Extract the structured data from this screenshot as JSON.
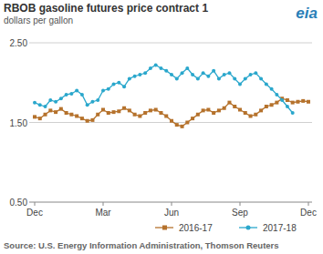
{
  "chart_data": {
    "type": "line",
    "title": "RBOB gasoline futures price contract 1",
    "subtitle": "dollars per gallon",
    "logo": "eia",
    "source": "Source: U.S. Energy Information Administration, Thomson Reuters",
    "categories": [
      "Dec",
      null,
      null,
      null,
      null,
      null,
      null,
      null,
      null,
      null,
      null,
      null,
      null,
      "Mar",
      null,
      null,
      null,
      null,
      null,
      null,
      null,
      null,
      null,
      null,
      null,
      null,
      "Jun",
      null,
      null,
      null,
      null,
      null,
      null,
      null,
      null,
      null,
      null,
      null,
      null,
      "Sep",
      null,
      null,
      null,
      null,
      null,
      null,
      null,
      null,
      null,
      null,
      null,
      null,
      "Dec"
    ],
    "series": [
      {
        "name": "2016-17",
        "color": "#b5722c",
        "marker": "square",
        "values": [
          1.57,
          1.55,
          1.6,
          1.65,
          1.63,
          1.67,
          1.62,
          1.6,
          1.58,
          1.55,
          1.52,
          1.53,
          1.6,
          1.66,
          1.62,
          1.63,
          1.64,
          1.68,
          1.65,
          1.6,
          1.58,
          1.62,
          1.65,
          1.66,
          1.62,
          1.58,
          1.52,
          1.47,
          1.45,
          1.5,
          1.55,
          1.6,
          1.65,
          1.66,
          1.62,
          1.65,
          1.68,
          1.75,
          1.7,
          1.66,
          1.62,
          1.58,
          1.6,
          1.65,
          1.7,
          1.72,
          1.75,
          1.8,
          1.78,
          1.75,
          1.76,
          1.77,
          1.76
        ]
      },
      {
        "name": "2017-18",
        "color": "#2aa7cc",
        "marker": "circle",
        "values": [
          1.75,
          1.72,
          1.7,
          1.78,
          1.76,
          1.8,
          1.85,
          1.86,
          1.9,
          1.85,
          1.72,
          1.76,
          1.78,
          1.9,
          1.92,
          1.98,
          2.0,
          1.95,
          2.05,
          2.08,
          2.1,
          2.12,
          2.18,
          2.22,
          2.18,
          2.15,
          2.1,
          2.05,
          2.12,
          2.18,
          2.1,
          2.05,
          2.12,
          2.08,
          2.15,
          2.05,
          2.1,
          2.12,
          2.05,
          1.98,
          2.05,
          2.1,
          2.12,
          2.05,
          1.98,
          1.92,
          1.85,
          1.78,
          1.7,
          1.62,
          null,
          null,
          null
        ]
      }
    ],
    "ylim": [
      0.5,
      2.5
    ],
    "yticks": [
      {
        "value": 0.5,
        "label": "0.50"
      },
      {
        "value": 1.5,
        "label": "1.50"
      },
      {
        "value": 2.5,
        "label": "2.50"
      }
    ],
    "grid": true,
    "legend": "bottom"
  }
}
